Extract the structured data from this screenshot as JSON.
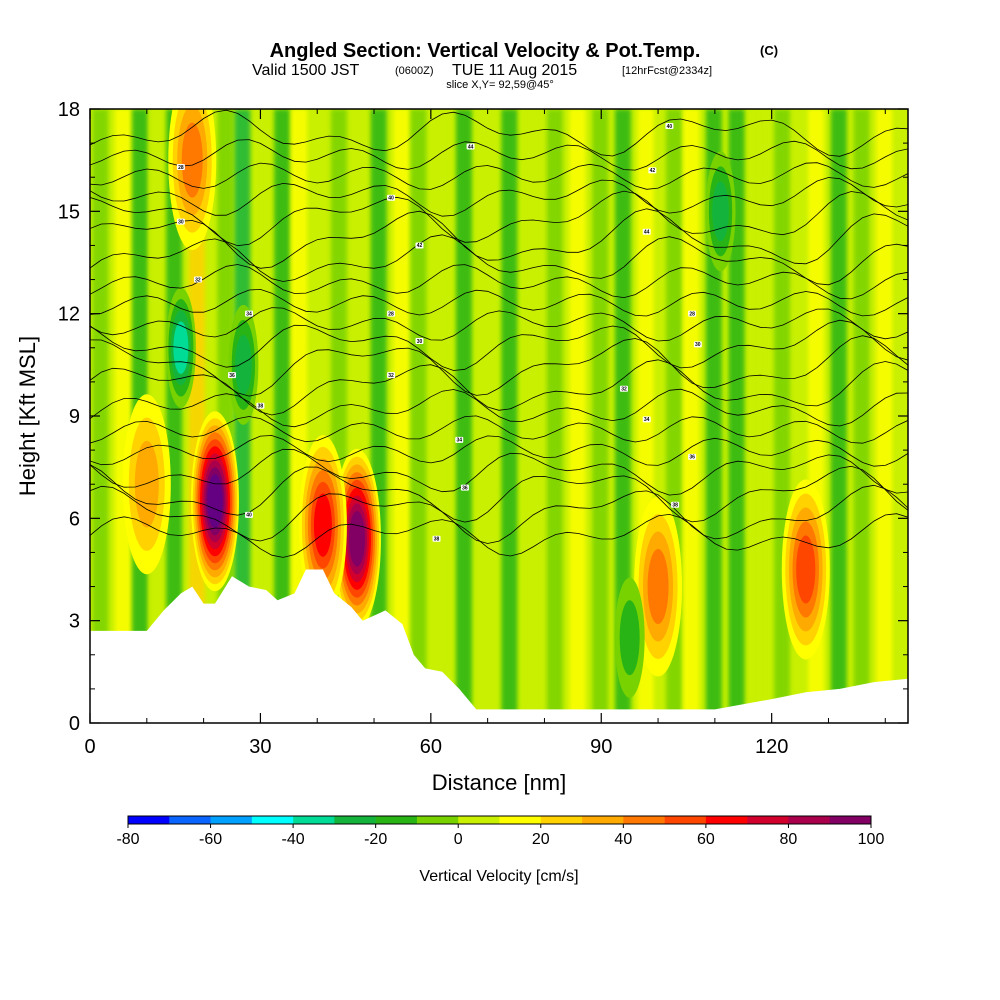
{
  "chart_data": {
    "type": "heatmap",
    "title": "Angled Section: Vertical Velocity & Pot.Temp.",
    "title_units": "(C)",
    "subtitle_parts": [
      "Valid 1500 JST",
      "(0600Z)",
      "TUE 11 Aug 2015",
      "[12hrFcst@2334z]"
    ],
    "slice_text": "slice X,Y= 92,59@45°",
    "xlabel": "Distance [nm]",
    "ylabel": "Height [Kft MSL]",
    "xlim": [
      0,
      144
    ],
    "ylim": [
      0,
      18
    ],
    "x_ticks": [
      0,
      30,
      60,
      90,
      120
    ],
    "y_ticks": [
      0,
      3,
      6,
      9,
      12,
      15,
      18
    ],
    "grid": false,
    "colorbar": {
      "title": "Vertical Velocity [cm/s]",
      "placement": "bottom",
      "levels": [
        -80,
        -70,
        -60,
        -50,
        -40,
        -30,
        -20,
        -10,
        0,
        10,
        20,
        30,
        40,
        50,
        60,
        70,
        80,
        90,
        100
      ],
      "tick_labels": [
        "-80",
        "-60",
        "-40",
        "-20",
        "0",
        "20",
        "40",
        "60",
        "80",
        "100"
      ],
      "colors": [
        "#0000ff",
        "#0a64ff",
        "#00a0ff",
        "#00ffff",
        "#00dc96",
        "#14b43c",
        "#28b414",
        "#78d200",
        "#c8f000",
        "#ffff00",
        "#ffd200",
        "#ffaa00",
        "#ff7800",
        "#ff4600",
        "#ff0000",
        "#d2002d",
        "#aa004b",
        "#820064",
        "#640082"
      ]
    },
    "contour_field": "Potential Temperature (C)",
    "contour_labels": [
      28,
      30,
      32,
      34,
      36,
      38,
      40,
      42,
      44
    ],
    "terrain": [
      [
        0,
        2.7
      ],
      [
        5,
        2.7
      ],
      [
        10,
        2.7
      ],
      [
        13,
        3.3
      ],
      [
        16,
        3.8
      ],
      [
        18,
        4.0
      ],
      [
        20,
        3.5
      ],
      [
        22,
        3.5
      ],
      [
        25,
        4.3
      ],
      [
        28,
        4.0
      ],
      [
        31,
        3.9
      ],
      [
        33,
        3.6
      ],
      [
        36,
        3.8
      ],
      [
        38,
        4.5
      ],
      [
        41,
        4.5
      ],
      [
        43,
        3.8
      ],
      [
        46,
        3.4
      ],
      [
        48,
        3.0
      ],
      [
        52,
        3.3
      ],
      [
        55,
        2.9
      ],
      [
        57,
        2.0
      ],
      [
        59,
        1.6
      ],
      [
        62,
        1.5
      ],
      [
        65,
        1.0
      ],
      [
        68,
        0.4
      ],
      [
        100,
        0.4
      ],
      [
        110,
        0.4
      ],
      [
        120,
        0.7
      ],
      [
        126,
        0.9
      ],
      [
        132,
        1.0
      ],
      [
        138,
        1.2
      ],
      [
        144,
        1.3
      ]
    ],
    "updrafts": [
      {
        "x": 22,
        "y": 6.5,
        "peak": 100
      },
      {
        "x": 47,
        "y": 5.4,
        "peak": 90
      },
      {
        "x": 41,
        "y": 5.8,
        "peak": 65
      },
      {
        "x": 18,
        "y": 16.5,
        "peak": 45
      },
      {
        "x": 10,
        "y": 7.0,
        "peak": 35
      },
      {
        "x": 100,
        "y": 4.0,
        "peak": 45
      },
      {
        "x": 126,
        "y": 4.5,
        "peak": 55
      }
    ],
    "downdrafts": [
      {
        "x": 16,
        "y": 11.0,
        "peak": -45
      },
      {
        "x": 27,
        "y": 10.5,
        "peak": -30
      },
      {
        "x": 111,
        "y": 15.0,
        "peak": -30
      },
      {
        "x": 95,
        "y": 2.5,
        "peak": -20
      }
    ]
  }
}
